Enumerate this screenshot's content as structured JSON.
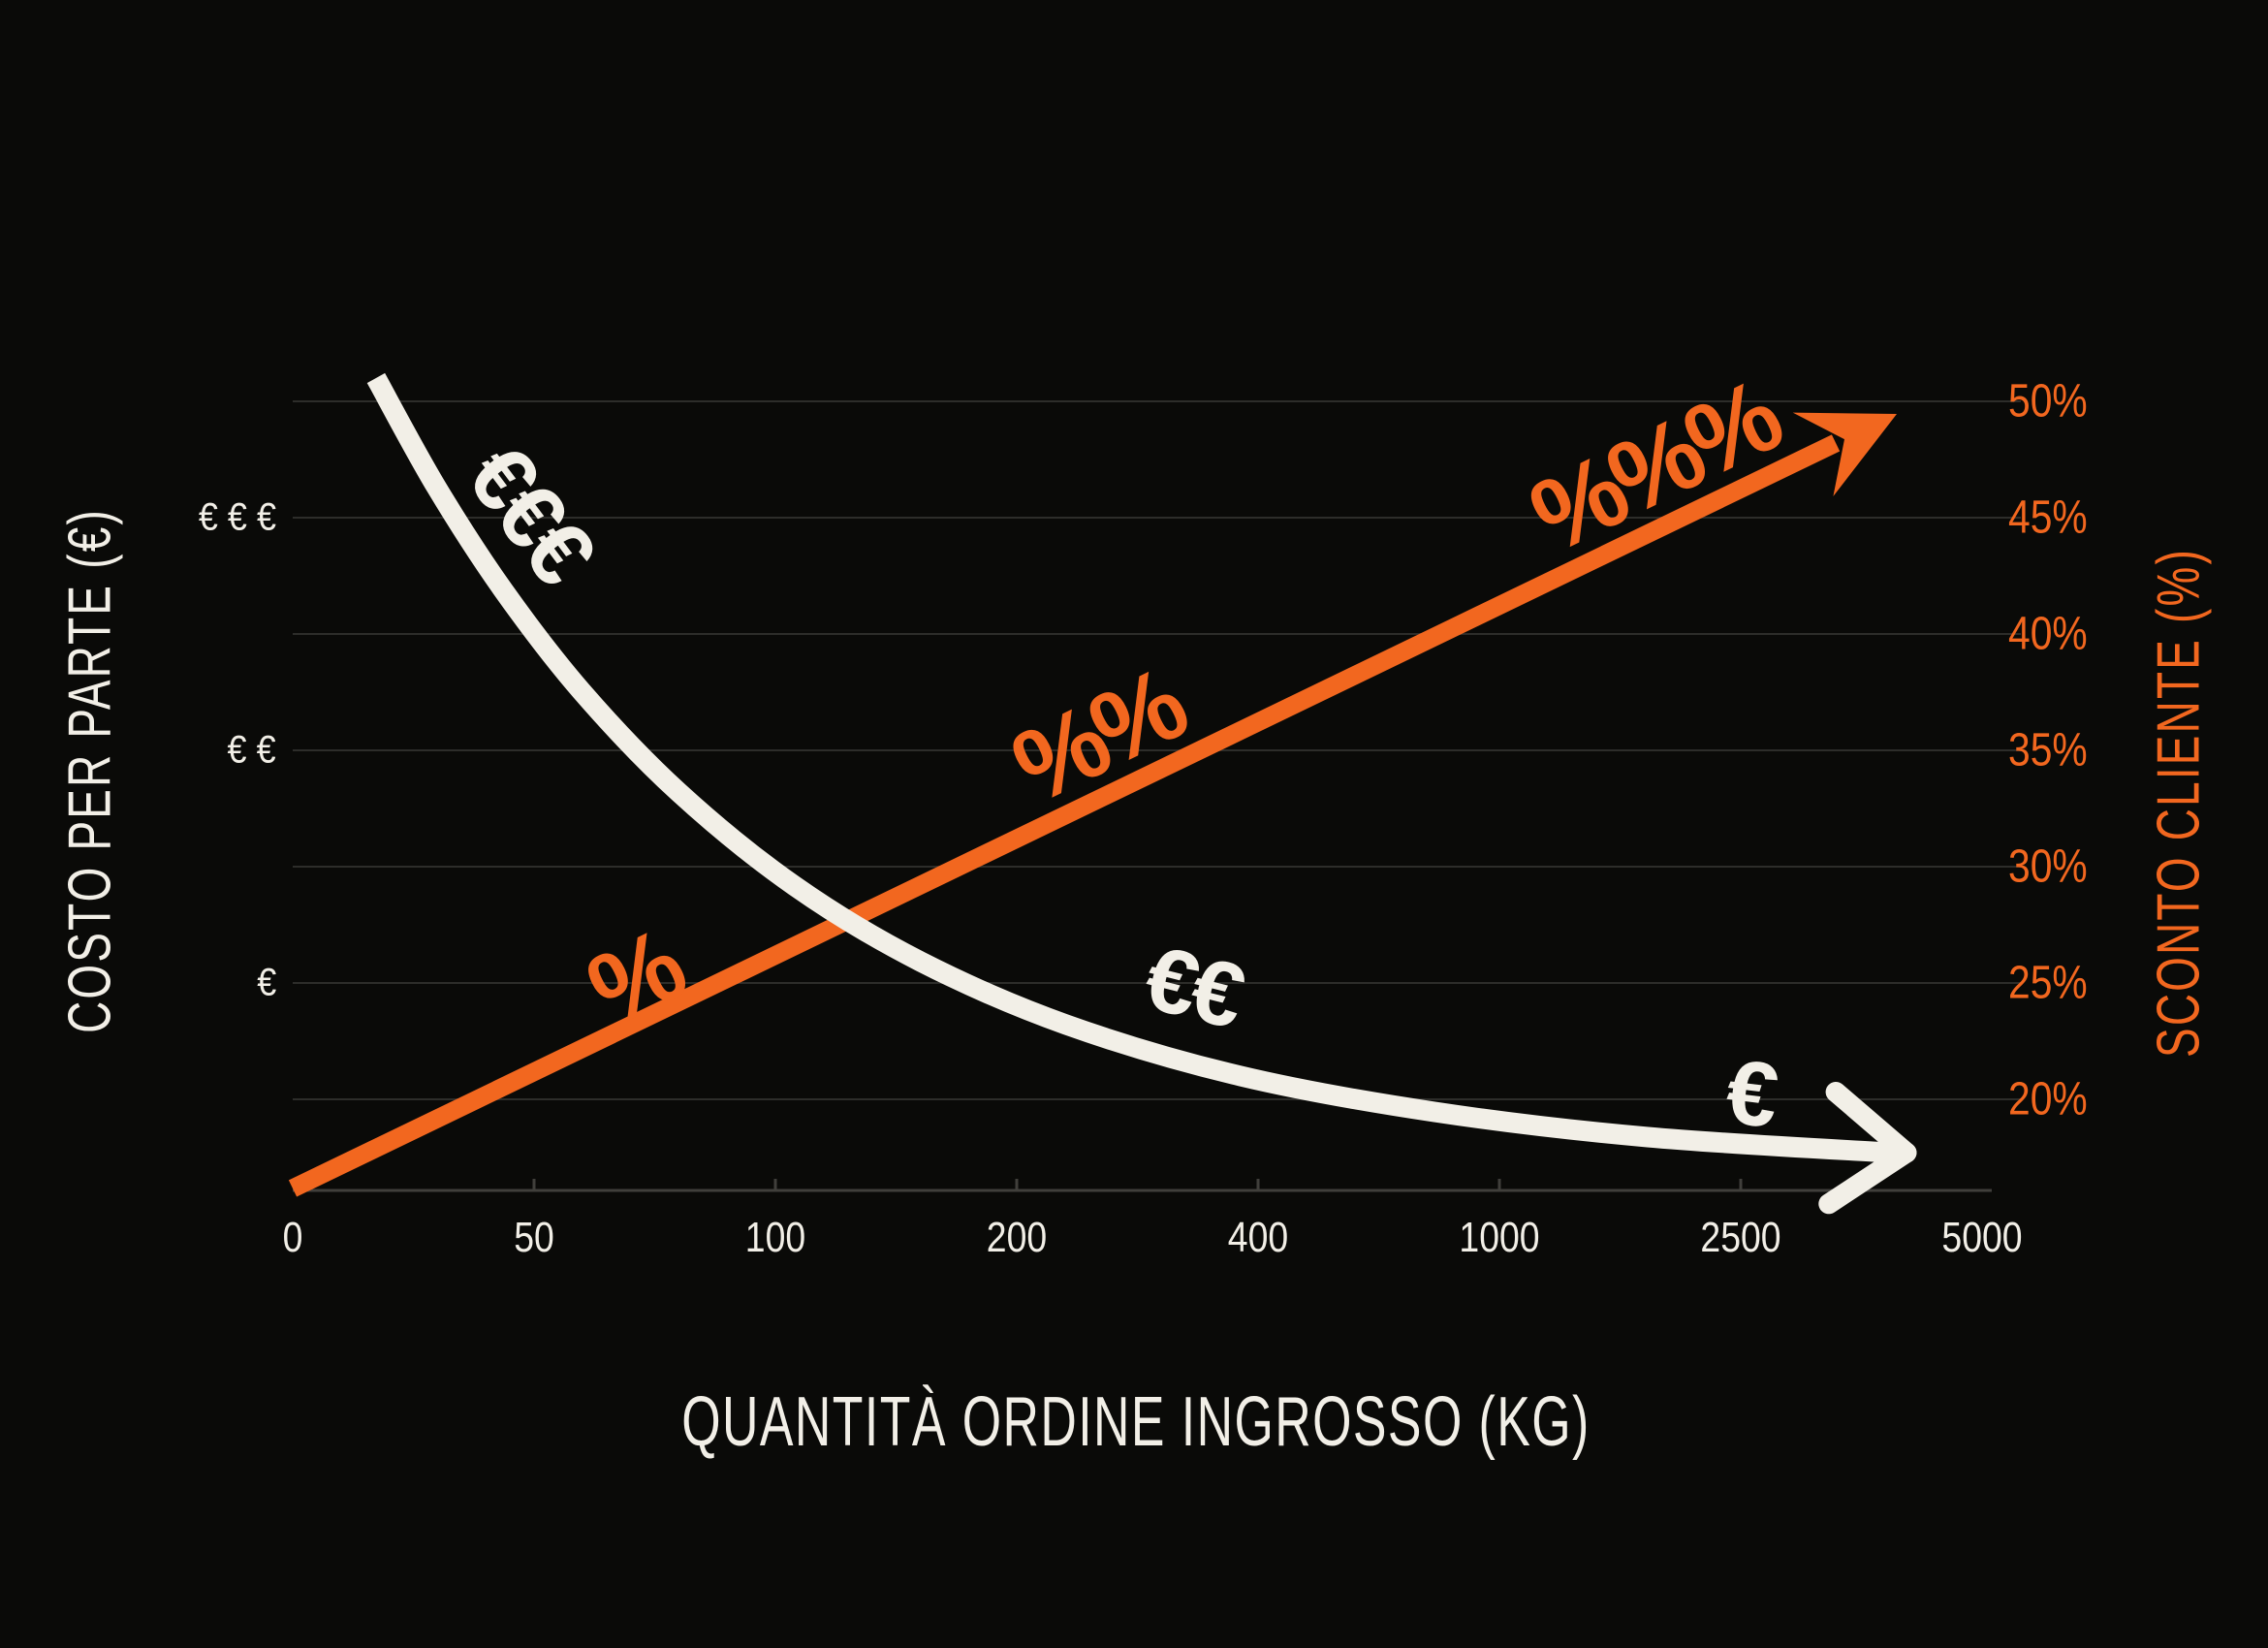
{
  "page": {
    "background": "#0a0a08"
  },
  "colors": {
    "cost_curve": "#F2EFE7",
    "discount_line": "#F2671F",
    "gridline": "#2D2D2A",
    "axis": "#403F3B",
    "background": "#0a0a08"
  },
  "chart_data": {
    "type": "line",
    "title": "",
    "xlabel": "QUANTITÀ ORDINE INGROSSO (KG)",
    "x_axis": {
      "ticks": [
        "0",
        "50",
        "100",
        "200",
        "400",
        "1000",
        "2500",
        "5000"
      ],
      "scale": "logarithmic-style equal spacing"
    },
    "left_axis": {
      "title": "COSTO PER PARTE (€)",
      "color": "#F2EFE7",
      "ticks": [
        {
          "label": "€ € €",
          "gridline": 1
        },
        {
          "label": "€ €",
          "gridline": 3
        },
        {
          "label": "€",
          "gridline": 5
        }
      ]
    },
    "right_axis": {
      "title": "SCONTO CLIENTE (%)",
      "color": "#F2671F",
      "ticks": [
        "50%",
        "45%",
        "40%",
        "35%",
        "30%",
        "25%",
        "20%"
      ],
      "range": [
        20,
        50
      ],
      "step": 5
    },
    "grid": {
      "on": true,
      "count": 7
    },
    "legend": "none",
    "series": [
      {
        "name": "costo-per-parte",
        "label": "Costo per parte (€)",
        "color": "#F2EFE7",
        "shape": "decreasing-exponential-curve",
        "arrow": "chevron",
        "points": [
          [
            0.0482,
            1.0
          ],
          [
            0.083,
            0.8664
          ],
          [
            0.1223,
            0.7375
          ],
          [
            0.1671,
            0.6146
          ],
          [
            0.2232,
            0.4905
          ],
          [
            0.2905,
            0.3747
          ],
          [
            0.3634,
            0.2816
          ],
          [
            0.4476,
            0.2041
          ],
          [
            0.5485,
            0.1408
          ],
          [
            0.6607,
            0.0967
          ],
          [
            0.7841,
            0.0656
          ],
          [
            0.9243,
            0.0465
          ]
        ],
        "tip": [
          0.9338,
          0.0465
        ],
        "cost_index_at_ticks": [
          100,
          69,
          39,
          23,
          14,
          9,
          6,
          4
        ]
      },
      {
        "name": "sconto-cliente",
        "label": "Sconto cliente (%)",
        "color": "#F2671F",
        "shape": "increasing-straight-line",
        "arrow": "solid",
        "points": [
          [
            0.0,
            0.0024
          ],
          [
            0.8929,
            0.9201
          ]
        ],
        "tip": [
          0.9282,
          0.9558
        ],
        "discount_pct_at_ticks": [
          16,
          21,
          26,
          32,
          37,
          42,
          47,
          50
        ]
      }
    ],
    "annotations": [
      {
        "text": "€€€",
        "fx": 0.1374,
        "fy": 0.8329,
        "rot": 53,
        "kind": "eur"
      },
      {
        "text": "%",
        "fx": 0.198,
        "fy": 0.26,
        "rot": -26,
        "kind": "pct"
      },
      {
        "text": "%%",
        "fx": 0.466,
        "fy": 0.5585,
        "rot": -26,
        "kind": "pct"
      },
      {
        "text": "%%%",
        "fx": 0.788,
        "fy": 0.8902,
        "rot": -26,
        "kind": "pct"
      },
      {
        "text": "€€",
        "fx": 0.521,
        "fy": 0.2506,
        "rot": 14,
        "kind": "eur"
      },
      {
        "text": "€",
        "fx": 0.8436,
        "fy": 0.1193,
        "rot": 7,
        "kind": "eur"
      }
    ]
  }
}
